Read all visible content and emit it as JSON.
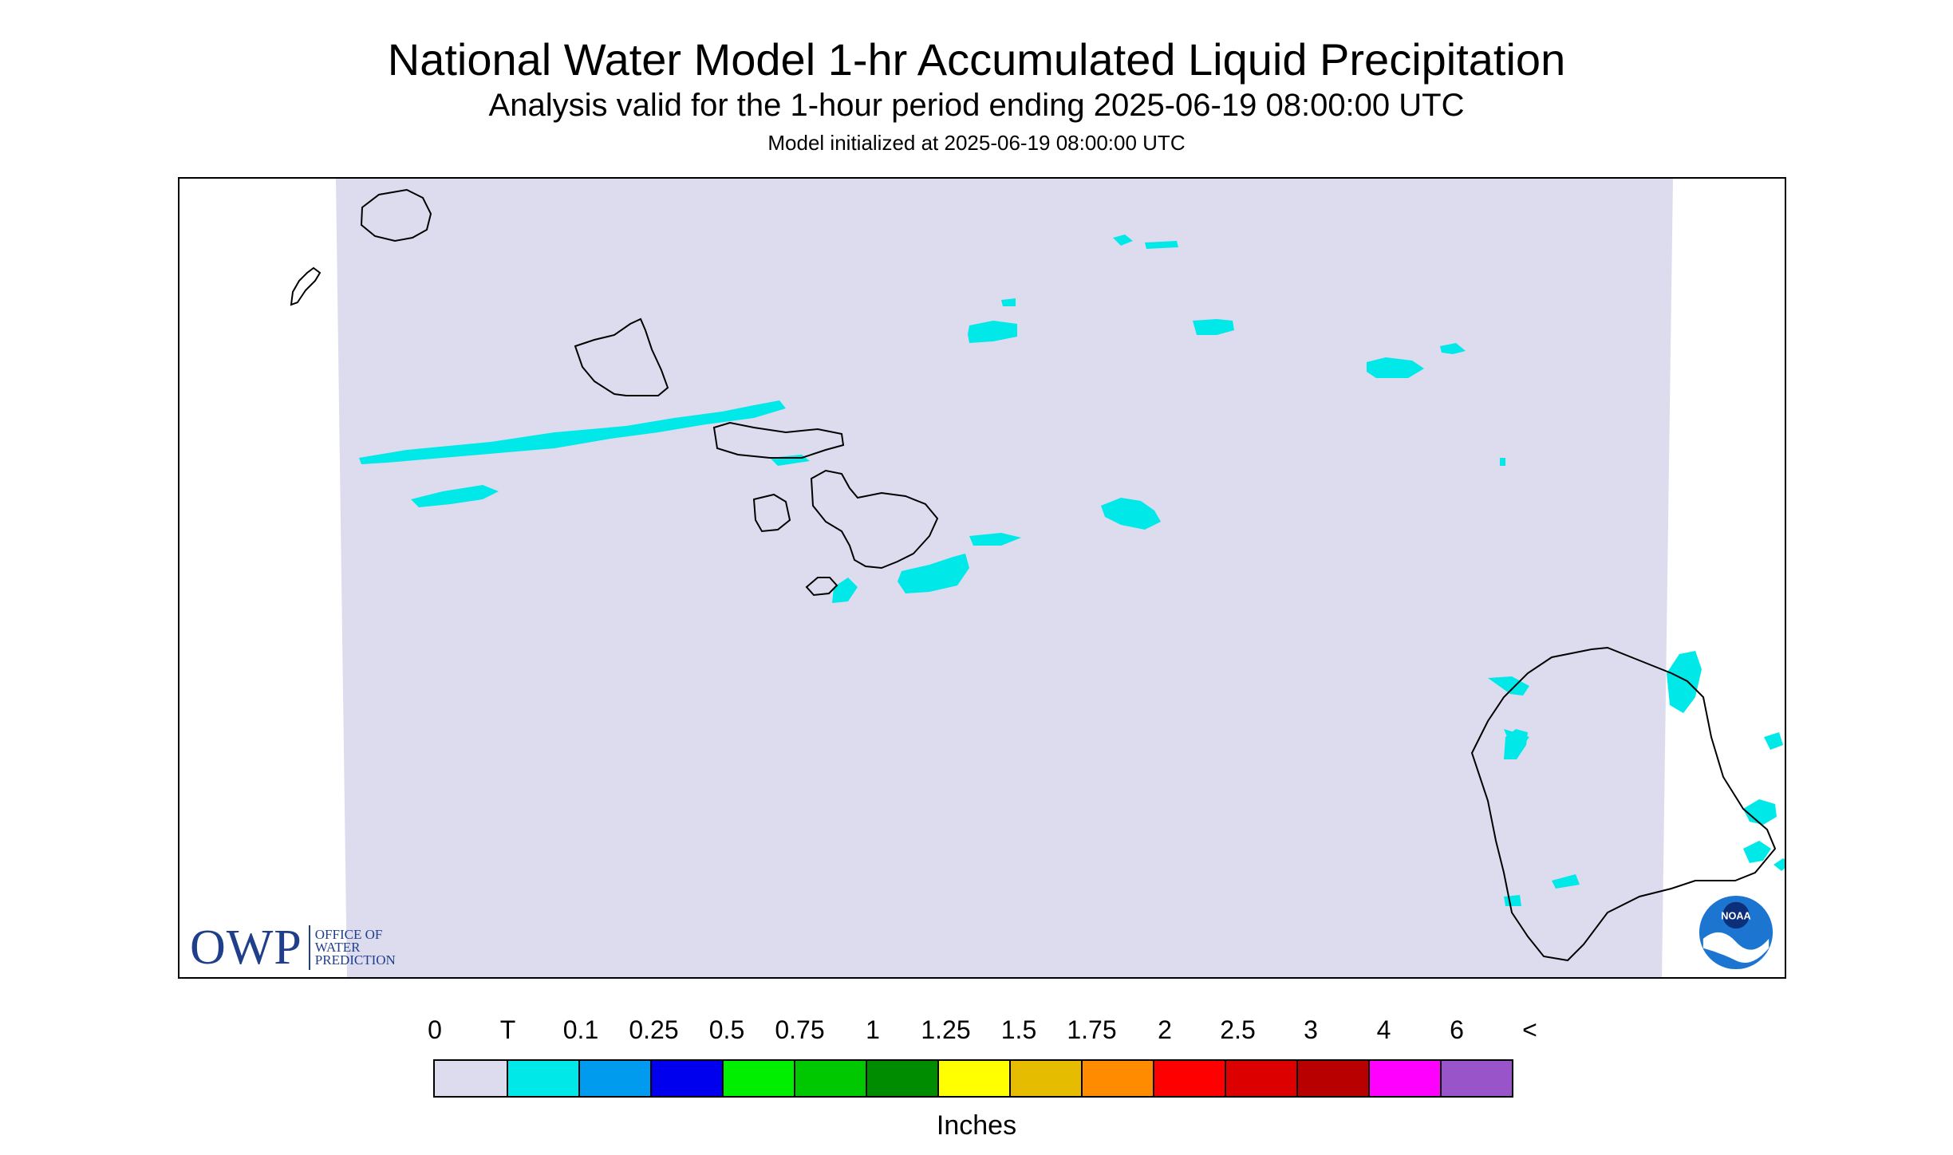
{
  "title": "National Water Model 1-hr Accumulated Liquid Precipitation",
  "subtitle": "Analysis valid for the 1-hour period ending 2025-06-19 08:00:00 UTC",
  "init_line": "Model initialized at 2025-06-19 08:00:00 UTC",
  "legend": {
    "labels": [
      "0",
      "T",
      "0.1",
      "0.25",
      "0.5",
      "0.75",
      "1",
      "1.25",
      "1.5",
      "1.75",
      "2",
      "2.5",
      "3",
      "4",
      "6",
      "<"
    ],
    "colors": [
      "#dcdcee",
      "#00e8e8",
      "#009bee",
      "#0000ee",
      "#00ee00",
      "#00c800",
      "#008c00",
      "#ffff00",
      "#e6bc00",
      "#ff8c00",
      "#ff0000",
      "#dc0000",
      "#b90000",
      "#ff00ff",
      "#9954c9"
    ],
    "units": "Inches"
  },
  "map": {
    "region": "Hawaiian Islands",
    "background_color": "#dcdcee",
    "precip_color": "#00e8e8",
    "coastline_color": "#000000",
    "islands": [
      "Niihau",
      "Kauai",
      "Oahu",
      "Molokai",
      "Lanai",
      "Maui",
      "Kahoolawe",
      "Hawaii"
    ]
  },
  "logos": {
    "owp_mark": "OWP",
    "owp_text": [
      "OFFICE OF",
      "WATER",
      "PREDICTION"
    ],
    "noaa_text": "NOAA"
  }
}
